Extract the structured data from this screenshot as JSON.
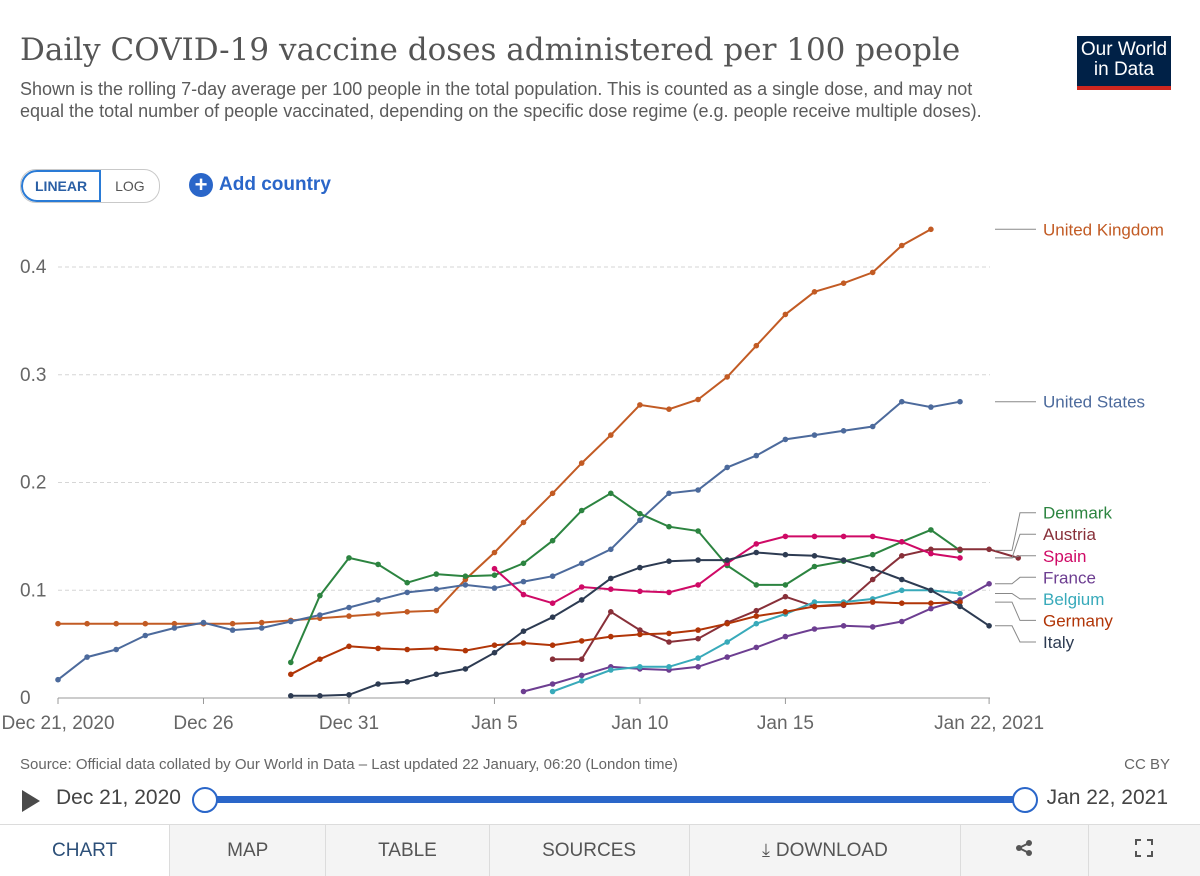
{
  "header": {
    "title": "Daily COVID-19 vaccine doses administered per 100 people",
    "subtitle": "Shown is the rolling 7-day average per 100 people in the total population. This is counted as a single dose, and may not equal the total number of people vaccinated, depending on the specific dose regime (e.g. people receive multiple doses).",
    "logo_line1": "Our World",
    "logo_line2": "in Data"
  },
  "controls": {
    "linear_label": "LINEAR",
    "log_label": "LOG",
    "add_country_label": "Add country"
  },
  "footer": {
    "source": "Source: Official data collated by Our World in Data – Last updated 22 January, 06:20 (London time)",
    "license": "CC BY"
  },
  "timeline": {
    "start": "Dec 21, 2020",
    "end": "Jan 22, 2021"
  },
  "tabs": {
    "chart": "CHART",
    "map": "MAP",
    "table": "TABLE",
    "sources": "SOURCES",
    "download": "DOWNLOAD"
  },
  "chart_data": {
    "type": "line",
    "x_ticks": [
      "Dec 21, 2020",
      "Dec 26",
      "Dec 31",
      "Jan 5",
      "Jan 10",
      "Jan 15",
      "Jan 22, 2021"
    ],
    "x_tick_days": [
      0,
      5,
      10,
      15,
      20,
      25,
      32
    ],
    "x_start": "Dec 21, 2020",
    "y_ticks": [
      "0",
      "0.1",
      "0.2",
      "0.3",
      "0.4"
    ],
    "ylim": [
      0,
      0.4
    ],
    "grid": "horizontal dashed",
    "legend": "right end labels",
    "series": [
      {
        "name": "United Kingdom",
        "color": "#c25b24",
        "label_value": 0.435,
        "points": [
          [
            0,
            0.069
          ],
          [
            1,
            0.069
          ],
          [
            2,
            0.069
          ],
          [
            3,
            0.069
          ],
          [
            4,
            0.069
          ],
          [
            5,
            0.069
          ],
          [
            6,
            0.069
          ],
          [
            7,
            0.07
          ],
          [
            8,
            0.072
          ],
          [
            9,
            0.074
          ],
          [
            10,
            0.076
          ],
          [
            11,
            0.078
          ],
          [
            12,
            0.08
          ],
          [
            13,
            0.081
          ],
          [
            14,
            0.11
          ],
          [
            15,
            0.135
          ],
          [
            16,
            0.163
          ],
          [
            17,
            0.19
          ],
          [
            18,
            0.218
          ],
          [
            19,
            0.244
          ],
          [
            20,
            0.272
          ],
          [
            21,
            0.268
          ],
          [
            22,
            0.277
          ],
          [
            23,
            0.298
          ],
          [
            24,
            0.327
          ],
          [
            25,
            0.356
          ],
          [
            26,
            0.377
          ],
          [
            27,
            0.385
          ],
          [
            28,
            0.395
          ],
          [
            29,
            0.42
          ],
          [
            30,
            0.435
          ]
        ]
      },
      {
        "name": "United States",
        "color": "#4c6a9c",
        "label_value": 0.275,
        "points": [
          [
            0,
            0.017
          ],
          [
            1,
            0.038
          ],
          [
            2,
            0.045
          ],
          [
            3,
            0.058
          ],
          [
            4,
            0.065
          ],
          [
            5,
            0.07
          ],
          [
            6,
            0.063
          ],
          [
            7,
            0.065
          ],
          [
            8,
            0.071
          ],
          [
            9,
            0.077
          ],
          [
            10,
            0.084
          ],
          [
            11,
            0.091
          ],
          [
            12,
            0.098
          ],
          [
            13,
            0.101
          ],
          [
            14,
            0.105
          ],
          [
            15,
            0.102
          ],
          [
            16,
            0.108
          ],
          [
            17,
            0.113
          ],
          [
            18,
            0.125
          ],
          [
            19,
            0.138
          ],
          [
            20,
            0.165
          ],
          [
            21,
            0.19
          ],
          [
            22,
            0.193
          ],
          [
            23,
            0.214
          ],
          [
            24,
            0.225
          ],
          [
            25,
            0.24
          ],
          [
            26,
            0.244
          ],
          [
            27,
            0.248
          ],
          [
            28,
            0.252
          ],
          [
            29,
            0.275
          ],
          [
            30,
            0.27
          ],
          [
            31,
            0.275
          ]
        ]
      },
      {
        "name": "Denmark",
        "color": "#2c8440",
        "label_value": 0.172,
        "points": [
          [
            8,
            0.033
          ],
          [
            9,
            0.095
          ],
          [
            10,
            0.13
          ],
          [
            11,
            0.124
          ],
          [
            12,
            0.107
          ],
          [
            13,
            0.115
          ],
          [
            14,
            0.113
          ],
          [
            15,
            0.114
          ],
          [
            16,
            0.125
          ],
          [
            17,
            0.146
          ],
          [
            18,
            0.174
          ],
          [
            19,
            0.19
          ],
          [
            20,
            0.171
          ],
          [
            21,
            0.159
          ],
          [
            22,
            0.155
          ],
          [
            23,
            0.123
          ],
          [
            24,
            0.105
          ],
          [
            25,
            0.105
          ],
          [
            26,
            0.122
          ],
          [
            27,
            0.127
          ],
          [
            28,
            0.133
          ],
          [
            29,
            0.145
          ],
          [
            30,
            0.156
          ],
          [
            31,
            0.137
          ]
        ]
      },
      {
        "name": "Austria",
        "color": "#883039",
        "label_value": 0.152,
        "points": [
          [
            17,
            0.036
          ],
          [
            18,
            0.036
          ],
          [
            19,
            0.08
          ],
          [
            20,
            0.063
          ],
          [
            21,
            0.052
          ],
          [
            22,
            0.055
          ],
          [
            23,
            0.07
          ],
          [
            24,
            0.081
          ],
          [
            25,
            0.094
          ],
          [
            26,
            0.085
          ],
          [
            27,
            0.086
          ],
          [
            28,
            0.11
          ],
          [
            29,
            0.132
          ],
          [
            30,
            0.138
          ],
          [
            31,
            0.138
          ],
          [
            32,
            0.138
          ],
          [
            33,
            0.13
          ]
        ]
      },
      {
        "name": "Spain",
        "color": "#cf0a66",
        "label_value": 0.132,
        "points": [
          [
            15,
            0.12
          ],
          [
            16,
            0.096
          ],
          [
            17,
            0.088
          ],
          [
            18,
            0.103
          ],
          [
            19,
            0.101
          ],
          [
            20,
            0.099
          ],
          [
            21,
            0.098
          ],
          [
            22,
            0.105
          ],
          [
            23,
            0.125
          ],
          [
            24,
            0.143
          ],
          [
            25,
            0.15
          ],
          [
            26,
            0.15
          ],
          [
            27,
            0.15
          ],
          [
            28,
            0.15
          ],
          [
            29,
            0.145
          ],
          [
            30,
            0.134
          ],
          [
            31,
            0.13
          ]
        ]
      },
      {
        "name": "France",
        "color": "#6d3e91",
        "label_value": 0.112,
        "points": [
          [
            16,
            0.006
          ],
          [
            17,
            0.013
          ],
          [
            18,
            0.021
          ],
          [
            19,
            0.029
          ],
          [
            20,
            0.027
          ],
          [
            21,
            0.026
          ],
          [
            22,
            0.029
          ],
          [
            23,
            0.038
          ],
          [
            24,
            0.047
          ],
          [
            25,
            0.057
          ],
          [
            26,
            0.064
          ],
          [
            27,
            0.067
          ],
          [
            28,
            0.066
          ],
          [
            29,
            0.071
          ],
          [
            30,
            0.083
          ],
          [
            31,
            0.091
          ],
          [
            32,
            0.106
          ]
        ]
      },
      {
        "name": "Belgium",
        "color": "#38aaba",
        "label_value": 0.092,
        "points": [
          [
            17,
            0.006
          ],
          [
            18,
            0.016
          ],
          [
            19,
            0.026
          ],
          [
            20,
            0.029
          ],
          [
            21,
            0.029
          ],
          [
            22,
            0.037
          ],
          [
            23,
            0.052
          ],
          [
            24,
            0.069
          ],
          [
            25,
            0.078
          ],
          [
            26,
            0.089
          ],
          [
            27,
            0.089
          ],
          [
            28,
            0.092
          ],
          [
            29,
            0.1
          ],
          [
            30,
            0.1
          ],
          [
            31,
            0.097
          ]
        ]
      },
      {
        "name": "Germany",
        "color": "#b13507",
        "label_value": 0.072,
        "points": [
          [
            8,
            0.022
          ],
          [
            9,
            0.036
          ],
          [
            10,
            0.048
          ],
          [
            11,
            0.046
          ],
          [
            12,
            0.045
          ],
          [
            13,
            0.046
          ],
          [
            14,
            0.044
          ],
          [
            15,
            0.049
          ],
          [
            16,
            0.051
          ],
          [
            17,
            0.049
          ],
          [
            18,
            0.053
          ],
          [
            19,
            0.057
          ],
          [
            20,
            0.059
          ],
          [
            21,
            0.06
          ],
          [
            22,
            0.063
          ],
          [
            23,
            0.069
          ],
          [
            24,
            0.076
          ],
          [
            25,
            0.08
          ],
          [
            26,
            0.085
          ],
          [
            27,
            0.087
          ],
          [
            28,
            0.089
          ],
          [
            29,
            0.088
          ],
          [
            30,
            0.088
          ],
          [
            31,
            0.089
          ]
        ]
      },
      {
        "name": "Italy",
        "color": "#2d3b52",
        "label_value": 0.052,
        "points": [
          [
            8,
            0.002
          ],
          [
            9,
            0.002
          ],
          [
            10,
            0.003
          ],
          [
            11,
            0.013
          ],
          [
            12,
            0.015
          ],
          [
            13,
            0.022
          ],
          [
            14,
            0.027
          ],
          [
            15,
            0.042
          ],
          [
            16,
            0.062
          ],
          [
            17,
            0.075
          ],
          [
            18,
            0.091
          ],
          [
            19,
            0.111
          ],
          [
            20,
            0.121
          ],
          [
            21,
            0.127
          ],
          [
            22,
            0.128
          ],
          [
            23,
            0.128
          ],
          [
            24,
            0.135
          ],
          [
            25,
            0.133
          ],
          [
            26,
            0.132
          ],
          [
            27,
            0.128
          ],
          [
            28,
            0.12
          ],
          [
            29,
            0.11
          ],
          [
            30,
            0.1
          ],
          [
            31,
            0.085
          ],
          [
            32,
            0.067
          ]
        ]
      }
    ]
  }
}
